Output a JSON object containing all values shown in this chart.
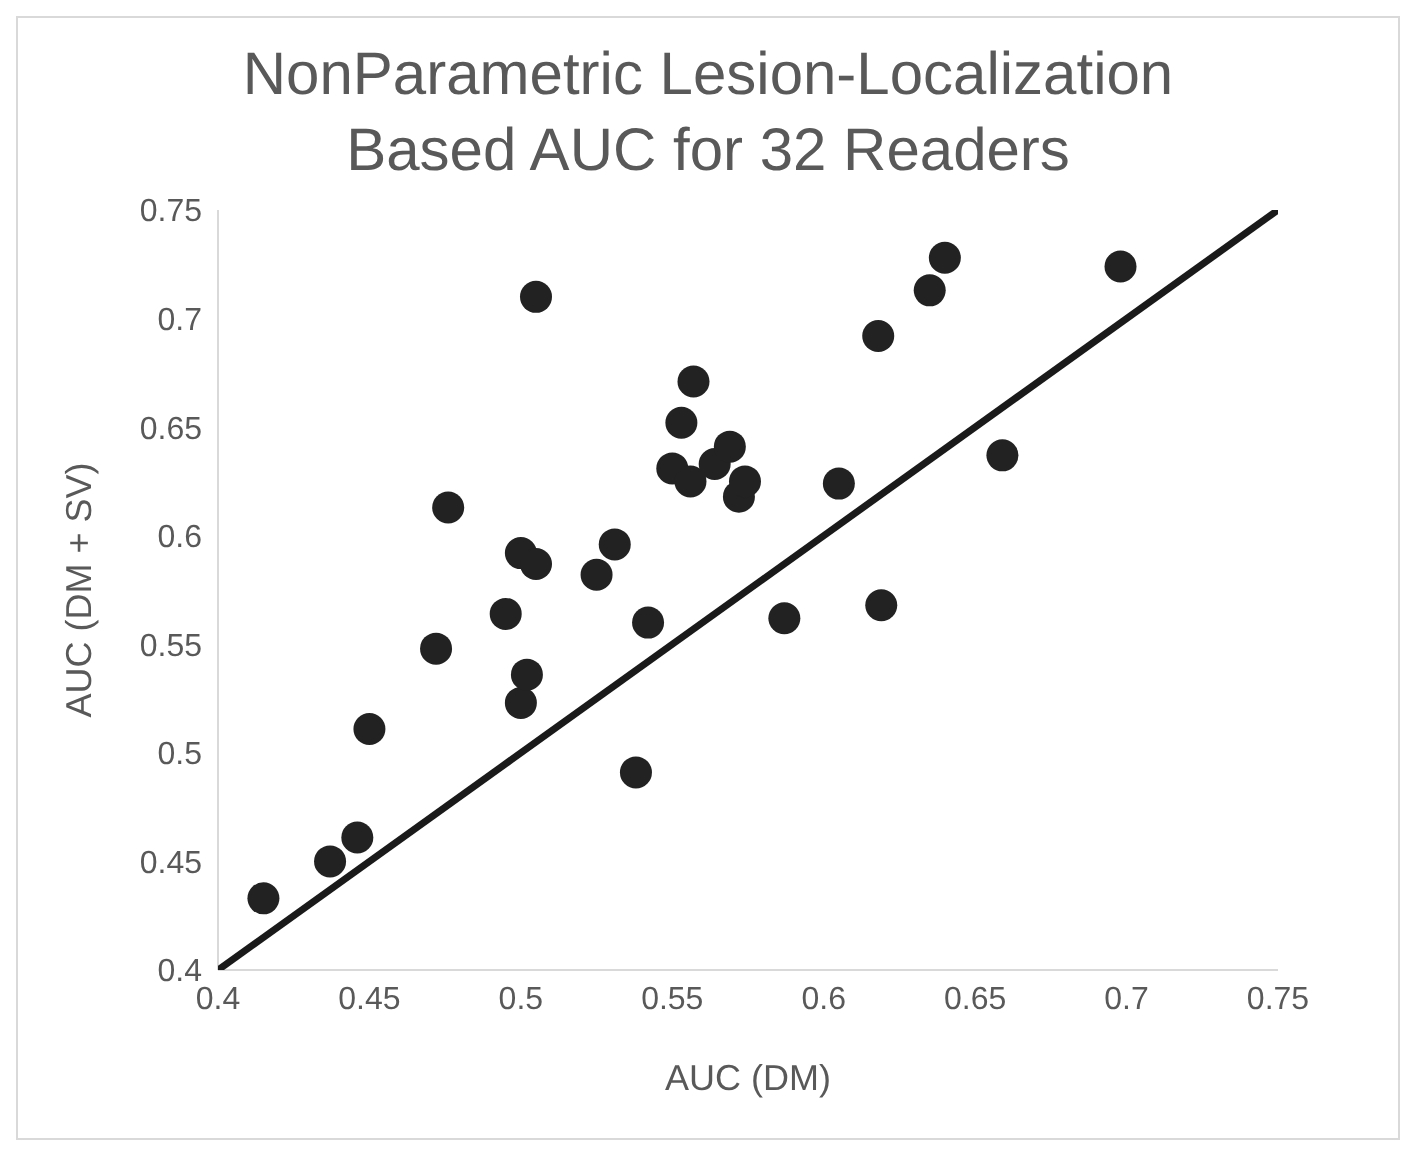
{
  "chart_data": {
    "type": "scatter",
    "title": "NonParametric Lesion-Localization Based AUC for 32 Readers",
    "xlabel": "AUC (DM)",
    "ylabel": "AUC (DM + SV)",
    "xlim": [
      0.4,
      0.75
    ],
    "xticks": [
      0.4,
      0.45,
      0.5,
      0.55,
      0.6,
      0.65,
      0.7,
      0.75
    ],
    "ylim": [
      0.4,
      0.75
    ],
    "yticks": [
      0.4,
      0.45,
      0.5,
      0.55,
      0.6,
      0.65,
      0.7,
      0.75
    ],
    "grid": false,
    "legend": false,
    "marker": "circle",
    "series": [
      {
        "color": "#222222",
        "x": [
          0.415,
          0.437,
          0.446,
          0.45,
          0.472,
          0.476,
          0.495,
          0.5,
          0.5,
          0.502,
          0.505,
          0.505,
          0.525,
          0.531,
          0.538,
          0.542,
          0.55,
          0.553,
          0.556,
          0.557,
          0.564,
          0.569,
          0.572,
          0.574,
          0.587,
          0.605,
          0.618,
          0.619,
          0.635,
          0.64,
          0.659,
          0.698
        ],
        "values": [
          0.433,
          0.45,
          0.461,
          0.511,
          0.548,
          0.613,
          0.564,
          0.592,
          0.523,
          0.536,
          0.587,
          0.71,
          0.582,
          0.596,
          0.491,
          0.56,
          0.631,
          0.652,
          0.625,
          0.671,
          0.633,
          0.641,
          0.618,
          0.625,
          0.562,
          0.624,
          0.692,
          0.568,
          0.713,
          0.728,
          0.637,
          0.724
        ]
      },
      {
        "type": "line",
        "color": "#1a1a1a",
        "x": [
          0.4,
          0.75
        ],
        "values": [
          0.4,
          0.75
        ],
        "marker": "none",
        "line_style": "solid"
      }
    ]
  }
}
